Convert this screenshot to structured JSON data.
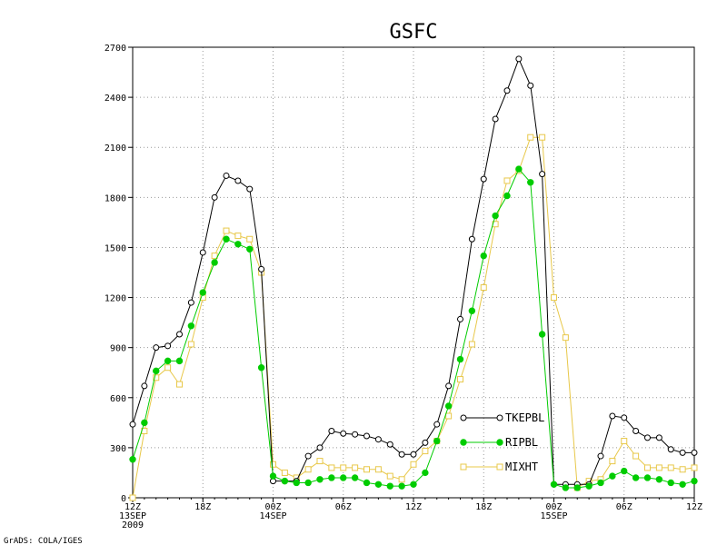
{
  "chart_data": {
    "type": "line",
    "title": "GSFC",
    "credit": "GrADS: COLA/IGES",
    "xlabel": "",
    "ylabel": "",
    "ylim": [
      0,
      2700
    ],
    "yticks": [
      0,
      300,
      600,
      900,
      1200,
      1500,
      1800,
      2100,
      2400,
      2700
    ],
    "xlim": [
      0,
      48
    ],
    "grid": true,
    "legend_position": "inside-lower-center",
    "xticks": [
      {
        "x": 0,
        "lines": [
          "12Z",
          "13SEP",
          "2009"
        ]
      },
      {
        "x": 6,
        "lines": [
          "18Z"
        ]
      },
      {
        "x": 12,
        "lines": [
          "00Z",
          "14SEP"
        ]
      },
      {
        "x": 18,
        "lines": [
          "06Z"
        ]
      },
      {
        "x": 24,
        "lines": [
          "12Z"
        ]
      },
      {
        "x": 30,
        "lines": [
          "18Z"
        ]
      },
      {
        "x": 36,
        "lines": [
          "00Z",
          "15SEP"
        ]
      },
      {
        "x": 42,
        "lines": [
          "06Z"
        ]
      },
      {
        "x": 48,
        "lines": [
          "12Z"
        ]
      }
    ],
    "x": [
      0,
      1,
      2,
      3,
      4,
      5,
      6,
      7,
      8,
      9,
      10,
      11,
      12,
      13,
      14,
      15,
      16,
      17,
      18,
      19,
      20,
      21,
      22,
      23,
      24,
      25,
      26,
      27,
      28,
      29,
      30,
      31,
      32,
      33,
      34,
      35,
      36,
      37,
      38,
      39,
      40,
      41,
      42,
      43,
      44,
      45,
      46,
      47,
      48
    ],
    "series": [
      {
        "name": "TKEPBL",
        "color": "#000000",
        "marker": "open-circle",
        "values": [
          440,
          670,
          900,
          910,
          980,
          1170,
          1470,
          1800,
          1930,
          1900,
          1850,
          1370,
          100,
          100,
          100,
          250,
          300,
          400,
          385,
          380,
          370,
          350,
          320,
          260,
          260,
          330,
          440,
          670,
          1070,
          1550,
          1910,
          2270,
          2440,
          2630,
          2470,
          1940,
          80,
          80,
          80,
          80,
          250,
          490,
          480,
          400,
          360,
          360,
          290,
          270,
          270
        ]
      },
      {
        "name": "RIPBL",
        "color": "#00cc00",
        "marker": "filled-circle",
        "values": [
          230,
          450,
          760,
          820,
          820,
          1030,
          1230,
          1410,
          1550,
          1520,
          1490,
          780,
          130,
          100,
          90,
          90,
          110,
          120,
          120,
          120,
          90,
          80,
          70,
          70,
          80,
          150,
          340,
          550,
          830,
          1120,
          1450,
          1690,
          1810,
          1970,
          1890,
          980,
          80,
          60,
          60,
          70,
          90,
          130,
          160,
          120,
          120,
          110,
          90,
          80,
          100
        ]
      },
      {
        "name": "MIXHT",
        "color": "#e8c84a",
        "marker": "open-square",
        "values": [
          0,
          400,
          720,
          780,
          680,
          920,
          1200,
          1450,
          1600,
          1570,
          1550,
          1350,
          200,
          150,
          120,
          170,
          220,
          180,
          180,
          180,
          170,
          170,
          130,
          110,
          200,
          280,
          340,
          490,
          710,
          920,
          1260,
          1640,
          1900,
          1960,
          2160,
          2160,
          1200,
          960,
          60,
          100,
          110,
          220,
          340,
          250,
          180,
          180,
          180,
          170,
          180
        ]
      }
    ]
  }
}
